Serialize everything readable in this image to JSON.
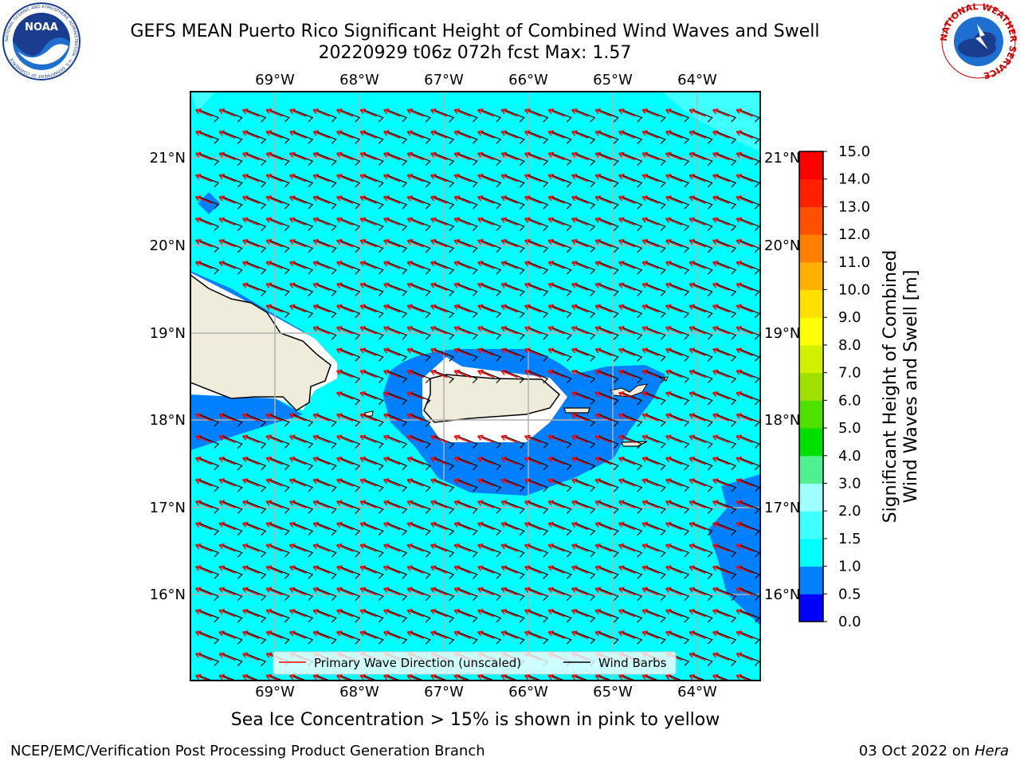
{
  "header": {
    "title_line1": "GEFS MEAN Puerto Rico Significant Height of Combined Wind Waves and Swell",
    "title_line2": "20220929 t06z 072h fcst   Max: 1.57"
  },
  "logos": {
    "left_icon": "noaa-logo-icon",
    "left_text": "NOAA",
    "left_ring": "NATIONAL OCEANIC AND ATMOSPHERIC ADMINISTRATION · U.S. DEPARTMENT OF COMMERCE",
    "right_icon": "nws-logo-icon",
    "right_ring": "NATIONAL WEATHER SERVICE"
  },
  "map": {
    "lon_ticks": [
      "69°W",
      "68°W",
      "67°W",
      "66°W",
      "65°W",
      "64°W"
    ],
    "lat_ticks": [
      "21°N",
      "20°N",
      "19°N",
      "18°N",
      "17°N",
      "16°N"
    ],
    "extent": {
      "lon_min": -70.0,
      "lon_max": -63.25,
      "lat_min": 15.0,
      "lat_max": 21.75
    },
    "legend": {
      "primary_wave": "Primary Wave Direction (unscaled)",
      "wind_barbs": "Wind Barbs"
    },
    "colors": {
      "arrow": "#ff0000",
      "barb": "#000000",
      "land": "#efecdc",
      "band_0_5_1_0": "#0080ff",
      "band_1_0_1_5": "#00ffff",
      "band_1_5_2_0": "#40ffff"
    }
  },
  "colorbar": {
    "label_line1": "Significant Height of Combined",
    "label_line2": "Wind Waves and Swell [m]",
    "ticks": [
      "0.0",
      "0.5",
      "1.0",
      "1.5",
      "2.0",
      "3.0",
      "4.0",
      "5.0",
      "6.0",
      "7.0",
      "8.0",
      "9.0",
      "10.0",
      "11.0",
      "12.0",
      "13.0",
      "14.0",
      "15.0"
    ],
    "colors": [
      "#0000ff",
      "#0080ff",
      "#00ffff",
      "#40ffff",
      "#a0ffff",
      "#50f090",
      "#00e000",
      "#50e000",
      "#a0e000",
      "#d0f000",
      "#ffff00",
      "#ffe000",
      "#ffb000",
      "#ff8000",
      "#ff5000",
      "#ff2000",
      "#ff0000"
    ]
  },
  "footer": {
    "subnote": "Sea Ice Concentration > 15% is shown in pink to yellow",
    "left": "NCEP/EMC/Verification Post Processing Product Generation Branch",
    "right_prefix": "03 Oct 2022 on ",
    "right_host": "Hera"
  }
}
